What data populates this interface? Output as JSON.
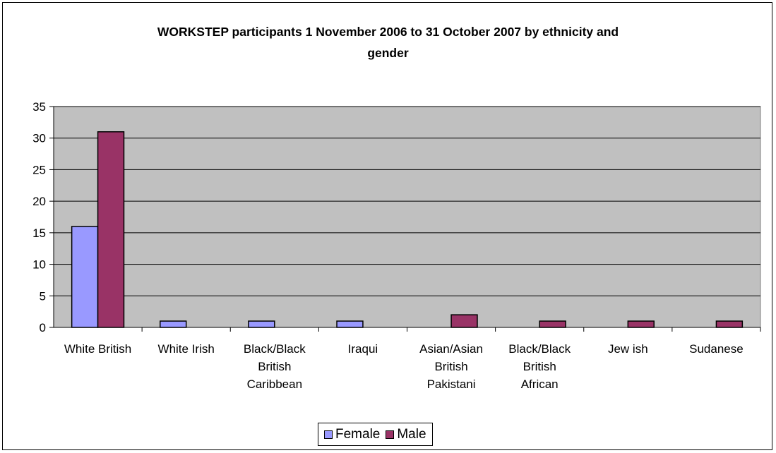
{
  "chart_data": {
    "type": "bar",
    "title_lines": [
      "WORKSTEP participants 1 November 2006 to 31 October 2007 by ethnicity and",
      "gender"
    ],
    "categories": [
      [
        "White British"
      ],
      [
        "White Irish"
      ],
      [
        "Black/Black",
        "British",
        "Caribbean"
      ],
      [
        "Iraqui"
      ],
      [
        "Asian/Asian",
        "British",
        "Pakistani"
      ],
      [
        "Black/Black",
        "British",
        "African"
      ],
      [
        "Jew ish"
      ],
      [
        "Sudanese"
      ]
    ],
    "series": [
      {
        "name": "Female",
        "color": "#9999ff",
        "values": [
          16,
          1,
          1,
          1,
          0,
          0,
          0,
          0
        ]
      },
      {
        "name": "Male",
        "color": "#993366",
        "values": [
          31,
          0,
          0,
          0,
          2,
          1,
          1,
          1
        ]
      }
    ],
    "ylim": [
      0,
      35
    ],
    "yticks": [
      0,
      5,
      10,
      15,
      20,
      25,
      30,
      35
    ],
    "grid": true,
    "plot_background": "#c0c0c0",
    "legend_position": "bottom"
  }
}
